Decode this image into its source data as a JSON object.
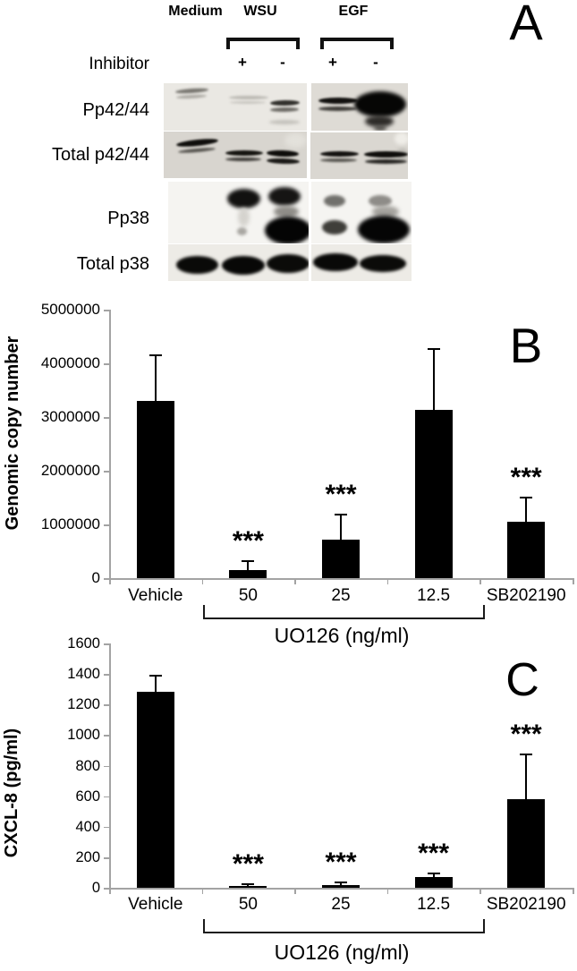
{
  "panel_a": {
    "label": "A",
    "group_headers": [
      "Medium",
      "WSU",
      "EGF"
    ],
    "inhibitor_label": "Inhibitor",
    "inhibitor_signs": [
      "+",
      "-",
      "+",
      "-"
    ],
    "row_labels": [
      "Pp42/44",
      "Total p42/44",
      "Pp38",
      "Total p38"
    ]
  },
  "chart_data": [
    {
      "panel_label": "B",
      "type": "bar",
      "categories": [
        "Vehicle",
        "50",
        "25",
        "12.5",
        "SB202190"
      ],
      "values": [
        3300000,
        150000,
        720000,
        3130000,
        1050000
      ],
      "error_plus": [
        850000,
        170000,
        460000,
        1140000,
        450000
      ],
      "significance": [
        "",
        "***",
        "***",
        "",
        "***"
      ],
      "ylabel": "Genomic copy number",
      "xlabel": "UO126 (ng/ml)",
      "xlabel_bracket_span": [
        "50",
        "12.5"
      ],
      "ylim": [
        0,
        5000000
      ],
      "ytick_labels": [
        "0",
        "1000000",
        "2000000",
        "3000000",
        "4000000",
        "5000000"
      ],
      "bar_color": "#000000",
      "axis_color": "#a3a3a3",
      "grid": false,
      "legend": "none"
    },
    {
      "panel_label": "C",
      "type": "bar",
      "categories": [
        "Vehicle",
        "50",
        "25",
        "12.5",
        "SB202190"
      ],
      "values": [
        1285,
        10,
        18,
        68,
        580
      ],
      "error_plus": [
        105,
        12,
        20,
        28,
        292
      ],
      "significance": [
        "",
        "***",
        "***",
        "***",
        "***"
      ],
      "ylabel": "CXCL-8 (pg/ml)",
      "xlabel": "UO126 (ng/ml)",
      "xlabel_bracket_span": [
        "50",
        "12.5"
      ],
      "ylim": [
        0,
        1600
      ],
      "ytick_labels": [
        "0",
        "200",
        "400",
        "600",
        "800",
        "1000",
        "1200",
        "1400",
        "1600"
      ],
      "bar_color": "#000000",
      "axis_color": "#a3a3a3",
      "grid": false,
      "legend": "none"
    }
  ]
}
